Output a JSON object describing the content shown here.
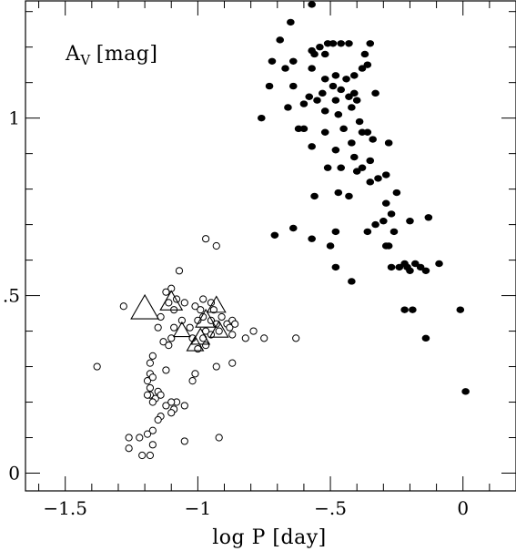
{
  "chart_data": {
    "type": "scatter",
    "xlabel": "log P [day]",
    "ylabel_text": "A",
    "ylabel_sub": "V",
    "ylabel_unit": "[mag]",
    "xlim": [
      -1.65,
      0.2
    ],
    "ylim": [
      -0.05,
      1.33
    ],
    "xticks": [
      {
        "value": -1.5,
        "label": "−1.5"
      },
      {
        "value": -1.0,
        "label": "−1"
      },
      {
        "value": -0.5,
        "label": "−.5"
      },
      {
        "value": 0.0,
        "label": "0"
      }
    ],
    "yticks": [
      {
        "value": 0.0,
        "label": "0"
      },
      {
        "value": 0.5,
        "label": ".5"
      },
      {
        "value": 1.0,
        "label": "1"
      }
    ],
    "series": [
      {
        "marker": "filled-circle",
        "points": [
          [
            -0.57,
            1.32
          ],
          [
            -0.65,
            1.27
          ],
          [
            -0.69,
            1.22
          ],
          [
            -0.51,
            1.21
          ],
          [
            -0.54,
            1.2
          ],
          [
            -0.57,
            1.19
          ],
          [
            -0.49,
            1.21
          ],
          [
            -0.46,
            1.21
          ],
          [
            -0.43,
            1.21
          ],
          [
            -0.35,
            1.21
          ],
          [
            -0.37,
            1.18
          ],
          [
            -0.56,
            1.18
          ],
          [
            -0.52,
            1.18
          ],
          [
            -0.64,
            1.16
          ],
          [
            -0.72,
            1.16
          ],
          [
            -0.67,
            1.14
          ],
          [
            -0.57,
            1.14
          ],
          [
            -0.38,
            1.14
          ],
          [
            -0.36,
            1.15
          ],
          [
            -0.48,
            1.12
          ],
          [
            -0.41,
            1.12
          ],
          [
            -0.52,
            1.11
          ],
          [
            -0.44,
            1.11
          ],
          [
            -0.64,
            1.09
          ],
          [
            -0.73,
            1.09
          ],
          [
            -0.49,
            1.09
          ],
          [
            -0.53,
            1.07
          ],
          [
            -0.46,
            1.08
          ],
          [
            -0.41,
            1.07
          ],
          [
            -0.58,
            1.06
          ],
          [
            -0.55,
            1.05
          ],
          [
            -0.48,
            1.05
          ],
          [
            -0.43,
            1.06
          ],
          [
            -0.4,
            1.05
          ],
          [
            -0.33,
            1.07
          ],
          [
            -0.6,
            1.04
          ],
          [
            -0.66,
            1.03
          ],
          [
            -0.52,
            1.02
          ],
          [
            -0.47,
            1.01
          ],
          [
            -0.42,
            1.03
          ],
          [
            -0.39,
            0.99
          ],
          [
            -0.76,
            1.0
          ],
          [
            -0.6,
            0.97
          ],
          [
            -0.62,
            0.97
          ],
          [
            -0.52,
            0.96
          ],
          [
            -0.45,
            0.97
          ],
          [
            -0.38,
            0.96
          ],
          [
            -0.36,
            0.96
          ],
          [
            -0.28,
            0.93
          ],
          [
            -0.34,
            0.94
          ],
          [
            -0.57,
            0.92
          ],
          [
            -0.42,
            0.93
          ],
          [
            -0.48,
            0.91
          ],
          [
            -0.41,
            0.89
          ],
          [
            -0.35,
            0.88
          ],
          [
            -0.51,
            0.86
          ],
          [
            -0.46,
            0.86
          ],
          [
            -0.38,
            0.86
          ],
          [
            -0.4,
            0.85
          ],
          [
            -0.32,
            0.83
          ],
          [
            -0.29,
            0.84
          ],
          [
            -0.35,
            0.82
          ],
          [
            -0.47,
            0.79
          ],
          [
            -0.43,
            0.78
          ],
          [
            -0.29,
            0.76
          ],
          [
            -0.25,
            0.79
          ],
          [
            -0.56,
            0.78
          ],
          [
            -0.13,
            0.72
          ],
          [
            -0.2,
            0.71
          ],
          [
            -0.27,
            0.73
          ],
          [
            -0.3,
            0.71
          ],
          [
            -0.26,
            0.68
          ],
          [
            -0.33,
            0.7
          ],
          [
            -0.36,
            0.68
          ],
          [
            -0.48,
            0.68
          ],
          [
            -0.64,
            0.69
          ],
          [
            -0.71,
            0.67
          ],
          [
            -0.57,
            0.66
          ],
          [
            -0.5,
            0.64
          ],
          [
            -0.29,
            0.64
          ],
          [
            -0.28,
            0.64
          ],
          [
            -0.22,
            0.59
          ],
          [
            -0.18,
            0.59
          ],
          [
            -0.21,
            0.58
          ],
          [
            -0.16,
            0.58
          ],
          [
            -0.24,
            0.58
          ],
          [
            -0.2,
            0.57
          ],
          [
            -0.48,
            0.58
          ],
          [
            -0.27,
            0.58
          ],
          [
            -0.14,
            0.57
          ],
          [
            -0.42,
            0.54
          ],
          [
            -0.09,
            0.59
          ],
          [
            -0.19,
            0.46
          ],
          [
            -0.22,
            0.46
          ],
          [
            -0.01,
            0.46
          ],
          [
            -0.14,
            0.38
          ],
          [
            0.01,
            0.23
          ]
        ]
      },
      {
        "marker": "open-circle",
        "points": [
          [
            -0.97,
            0.66
          ],
          [
            -0.93,
            0.64
          ],
          [
            -1.07,
            0.57
          ],
          [
            -1.1,
            0.52
          ],
          [
            -1.12,
            0.51
          ],
          [
            -1.08,
            0.49
          ],
          [
            -0.98,
            0.49
          ],
          [
            -1.11,
            0.48
          ],
          [
            -1.05,
            0.48
          ],
          [
            -0.95,
            0.48
          ],
          [
            -1.28,
            0.47
          ],
          [
            -1.09,
            0.46
          ],
          [
            -1.01,
            0.47
          ],
          [
            -0.99,
            0.46
          ],
          [
            -0.94,
            0.46
          ],
          [
            -0.98,
            0.44
          ],
          [
            -0.91,
            0.44
          ],
          [
            -1.14,
            0.44
          ],
          [
            -1.06,
            0.43
          ],
          [
            -1.0,
            0.43
          ],
          [
            -0.95,
            0.43
          ],
          [
            -0.93,
            0.42
          ],
          [
            -0.89,
            0.42
          ],
          [
            -0.87,
            0.43
          ],
          [
            -1.09,
            0.41
          ],
          [
            -1.15,
            0.41
          ],
          [
            -1.03,
            0.41
          ],
          [
            -0.97,
            0.4
          ],
          [
            -0.92,
            0.4
          ],
          [
            -0.88,
            0.41
          ],
          [
            -0.86,
            0.42
          ],
          [
            -1.1,
            0.38
          ],
          [
            -1.02,
            0.38
          ],
          [
            -0.98,
            0.38
          ],
          [
            -0.79,
            0.4
          ],
          [
            -0.75,
            0.38
          ],
          [
            -0.82,
            0.38
          ],
          [
            -0.63,
            0.38
          ],
          [
            -1.13,
            0.37
          ],
          [
            -0.87,
            0.39
          ],
          [
            -1.11,
            0.36
          ],
          [
            -1.0,
            0.35
          ],
          [
            -0.97,
            0.36
          ],
          [
            -0.95,
            0.39
          ],
          [
            -1.17,
            0.33
          ],
          [
            -1.38,
            0.3
          ],
          [
            -1.18,
            0.31
          ],
          [
            -0.93,
            0.3
          ],
          [
            -1.12,
            0.29
          ],
          [
            -1.18,
            0.28
          ],
          [
            -1.01,
            0.28
          ],
          [
            -1.19,
            0.26
          ],
          [
            -1.17,
            0.27
          ],
          [
            -1.02,
            0.26
          ],
          [
            -0.87,
            0.31
          ],
          [
            -1.18,
            0.24
          ],
          [
            -1.15,
            0.23
          ],
          [
            -1.18,
            0.22
          ],
          [
            -1.16,
            0.21
          ],
          [
            -1.14,
            0.22
          ],
          [
            -1.19,
            0.22
          ],
          [
            -1.17,
            0.2
          ],
          [
            -1.12,
            0.19
          ],
          [
            -1.08,
            0.2
          ],
          [
            -1.1,
            0.2
          ],
          [
            -1.05,
            0.19
          ],
          [
            -1.09,
            0.18
          ],
          [
            -1.14,
            0.16
          ],
          [
            -1.1,
            0.17
          ],
          [
            -1.15,
            0.15
          ],
          [
            -1.17,
            0.12
          ],
          [
            -1.19,
            0.11
          ],
          [
            -1.22,
            0.1
          ],
          [
            -1.26,
            0.1
          ],
          [
            -0.92,
            0.1
          ],
          [
            -1.05,
            0.09
          ],
          [
            -1.17,
            0.08
          ],
          [
            -1.26,
            0.07
          ],
          [
            -1.21,
            0.05
          ],
          [
            -1.18,
            0.05
          ]
        ]
      },
      {
        "marker": "open-triangle",
        "points": [
          [
            -1.2,
            0.46
          ],
          [
            -1.1,
            0.48
          ],
          [
            -0.93,
            0.47
          ],
          [
            -0.97,
            0.43
          ],
          [
            -0.92,
            0.4
          ],
          [
            -1.06,
            0.4
          ],
          [
            -0.99,
            0.38
          ],
          [
            -1.01,
            0.36
          ]
        ],
        "sizes": [
          30,
          24,
          20,
          22,
          20,
          18,
          20,
          18
        ]
      }
    ]
  }
}
